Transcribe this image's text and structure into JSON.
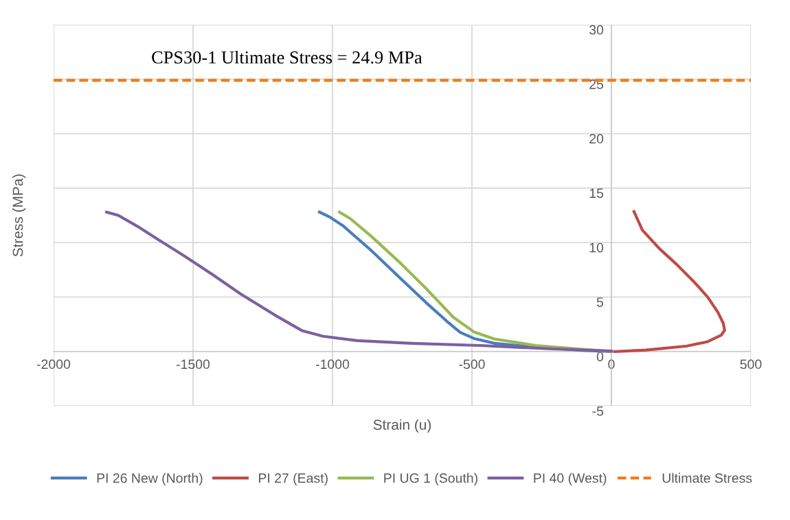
{
  "chart_data": {
    "type": "line",
    "xlabel": "Strain (u)",
    "ylabel": "Stress (MPa)",
    "xlim": [
      -2000,
      500
    ],
    "xticks": [
      -2000,
      -1500,
      -1000,
      -500,
      0,
      500
    ],
    "ylim": [
      -5,
      30
    ],
    "yticks": [
      -5,
      0,
      5,
      10,
      15,
      20,
      25,
      30
    ],
    "grid": true,
    "legend": "bottom",
    "marker": "none",
    "annotations": [
      "CPS30-1 Ultimate Stress = 24.9 MPa"
    ],
    "series": [
      {
        "name": "PI 26 New (North)",
        "color": "#4a7ebb",
        "x": [
          -1047,
          -1010,
          -960,
          -862,
          -764,
          -665,
          -591,
          -542,
          -493,
          -419,
          -271,
          -99,
          0
        ],
        "values": [
          12.8,
          12.35,
          11.5,
          9.3,
          6.9,
          4.5,
          2.8,
          1.75,
          1.2,
          0.75,
          0.4,
          0.1,
          0
        ]
      },
      {
        "name": "PI 27 (East)",
        "color": "#be4b48",
        "x": [
          12,
          123,
          271,
          345,
          394,
          406,
          401,
          382,
          345,
          296,
          234,
          172,
          111,
          81
        ],
        "values": [
          0,
          0.13,
          0.5,
          0.9,
          1.5,
          1.95,
          2.6,
          3.6,
          5.0,
          6.4,
          8.0,
          9.45,
          11.15,
          12.85
        ]
      },
      {
        "name": "PI UG 1 (South)",
        "color": "#98b954",
        "x": [
          -975,
          -936,
          -862,
          -764,
          -665,
          -567,
          -493,
          -419,
          -271,
          -99,
          0
        ],
        "values": [
          12.8,
          12.2,
          10.6,
          8.3,
          5.8,
          3.15,
          1.8,
          1.15,
          0.55,
          0.2,
          0
        ]
      },
      {
        "name": "PI 40 (West)",
        "color": "#7d60a0",
        "x": [
          -1810,
          -1768,
          -1700,
          -1626,
          -1527,
          -1429,
          -1330,
          -1207,
          -1108,
          -1034,
          -911,
          -714,
          -468,
          -222,
          0
        ],
        "values": [
          12.8,
          12.5,
          11.5,
          10.3,
          8.7,
          7.05,
          5.3,
          3.35,
          1.9,
          1.4,
          1.0,
          0.75,
          0.55,
          0.25,
          0.05
        ]
      },
      {
        "name": "Ultimate Stress",
        "color": "#f07c1e",
        "line_style": "dashed",
        "x": [
          -2000,
          500
        ],
        "values": [
          24.9,
          24.9
        ]
      }
    ]
  }
}
